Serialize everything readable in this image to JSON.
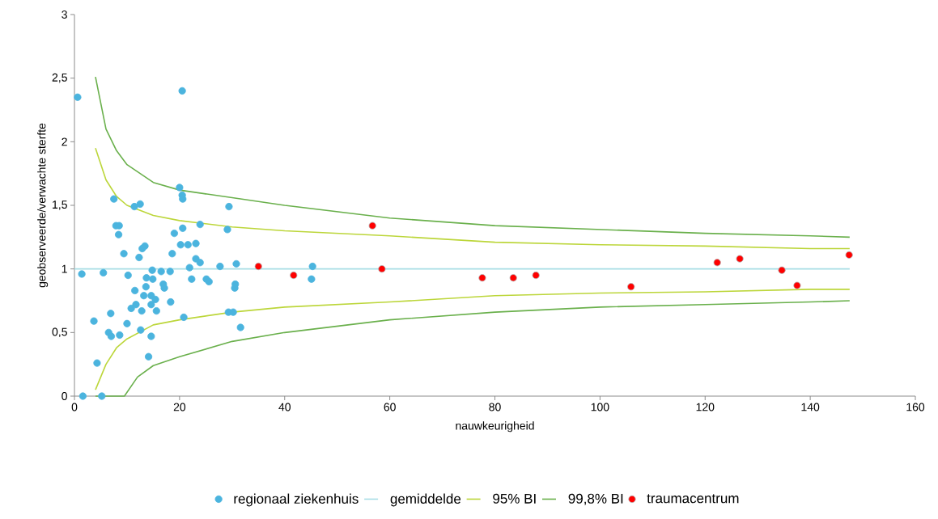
{
  "chart_data": {
    "type": "scatter",
    "xlabel": "nauwkeurigheid",
    "ylabel": "geobserveerde/verwachte sterfte",
    "xlim": [
      0,
      160
    ],
    "ylim": [
      0,
      3
    ],
    "xticks": [
      0,
      20,
      40,
      60,
      80,
      100,
      120,
      140,
      160
    ],
    "yticks": [
      0,
      {
        "value": 0.5,
        "label": "0,5"
      },
      1,
      {
        "value": 1.5,
        "label": "1,5"
      },
      2,
      {
        "value": 2.5,
        "label": "2,5"
      },
      3
    ],
    "legend": "bottom",
    "series": [
      {
        "name": "regionaal ziekenhuis",
        "marker": "circle",
        "color": "#4bb4de",
        "x": [
          0.6,
          20.5,
          7.5,
          11.4,
          12.5,
          20.0,
          20.5,
          20.6,
          29.4,
          7.9,
          8.5,
          8.4,
          23.9,
          20.6,
          19.0,
          29.1,
          9.4,
          12.9,
          13.4,
          12.3,
          18.6,
          20.2,
          21.6,
          23.1,
          23.1,
          23.9,
          21.9,
          27.7,
          30.8,
          1.4,
          5.5,
          10.2,
          14.8,
          16.5,
          18.2,
          13.7,
          14.9,
          13.6,
          11.5,
          16.9,
          17.1,
          22.3,
          25.1,
          25.6,
          30.6,
          30.5,
          13.2,
          14.6,
          15.4,
          14.6,
          18.3,
          11.7,
          10.8,
          12.8,
          15.6,
          6.9,
          29.3,
          30.2,
          3.7,
          10.0,
          20.8,
          6.5,
          7.0,
          8.6,
          12.6,
          14.6,
          31.6,
          14.1,
          4.3,
          1.6,
          5.2,
          45.3,
          45.1
        ],
        "values": [
          2.35,
          2.4,
          1.55,
          1.49,
          1.51,
          1.64,
          1.58,
          1.55,
          1.49,
          1.34,
          1.34,
          1.27,
          1.35,
          1.32,
          1.28,
          1.31,
          1.12,
          1.16,
          1.18,
          1.09,
          1.12,
          1.19,
          1.19,
          1.2,
          1.08,
          1.05,
          1.01,
          1.02,
          1.04,
          0.96,
          0.97,
          0.95,
          0.99,
          0.98,
          0.98,
          0.93,
          0.92,
          0.86,
          0.83,
          0.88,
          0.85,
          0.92,
          0.92,
          0.9,
          0.88,
          0.85,
          0.79,
          0.79,
          0.76,
          0.72,
          0.74,
          0.72,
          0.69,
          0.67,
          0.67,
          0.65,
          0.66,
          0.66,
          0.59,
          0.57,
          0.62,
          0.5,
          0.47,
          0.48,
          0.52,
          0.47,
          0.54,
          0.31,
          0.26,
          0,
          0,
          1.02,
          0.92
        ]
      },
      {
        "name": "gemiddelde",
        "type": "line",
        "marker": "none",
        "color": "#a8dde5",
        "x": [
          0,
          147.5
        ],
        "values": [
          1,
          1
        ]
      },
      {
        "name": "95% BI",
        "type": "line",
        "marker": "none",
        "color": "#bcd63a",
        "x": [
          4,
          6,
          8,
          10,
          15,
          20,
          30,
          40,
          60,
          80,
          100,
          120,
          140,
          147.5
        ],
        "values": [
          1.95,
          1.7,
          1.57,
          1.5,
          1.42,
          1.38,
          1.33,
          1.3,
          1.26,
          1.21,
          1.19,
          1.18,
          1.16,
          1.16
        ]
      },
      {
        "type": "line",
        "marker": "none",
        "color": "#bcd63a",
        "x": [
          4,
          6,
          8,
          10,
          15,
          20,
          30,
          40,
          60,
          80,
          100,
          120,
          140,
          147.5
        ],
        "values": [
          0.05,
          0.25,
          0.38,
          0.45,
          0.56,
          0.6,
          0.66,
          0.7,
          0.74,
          0.79,
          0.81,
          0.82,
          0.84,
          0.84
        ]
      },
      {
        "name": "99,8% BI",
        "type": "line",
        "marker": "none",
        "color": "#6ab04c",
        "x": [
          4,
          6,
          8,
          10,
          15,
          20,
          30,
          40,
          60,
          80,
          100,
          120,
          140,
          147.5
        ],
        "values": [
          2.51,
          2.1,
          1.93,
          1.82,
          1.68,
          1.62,
          1.56,
          1.5,
          1.4,
          1.34,
          1.31,
          1.28,
          1.26,
          1.25
        ]
      },
      {
        "type": "line",
        "marker": "none",
        "color": "#6ab04c",
        "x": [
          4,
          9.5,
          12,
          15,
          20,
          30,
          40,
          60,
          80,
          100,
          120,
          140,
          147.5
        ],
        "values": [
          0,
          0,
          0.15,
          0.24,
          0.31,
          0.43,
          0.5,
          0.6,
          0.66,
          0.7,
          0.72,
          0.74,
          0.75
        ]
      },
      {
        "name": "traumacentrum",
        "marker": "circle",
        "color": "#ff0000",
        "x": [
          35.0,
          41.7,
          56.7,
          58.5,
          77.6,
          83.5,
          87.8,
          105.9,
          122.3,
          126.6,
          134.6,
          137.5,
          147.4
        ],
        "values": [
          1.02,
          0.95,
          1.34,
          1.0,
          0.93,
          0.93,
          0.95,
          0.86,
          1.05,
          1.08,
          0.99,
          0.87,
          1.11
        ]
      }
    ]
  }
}
